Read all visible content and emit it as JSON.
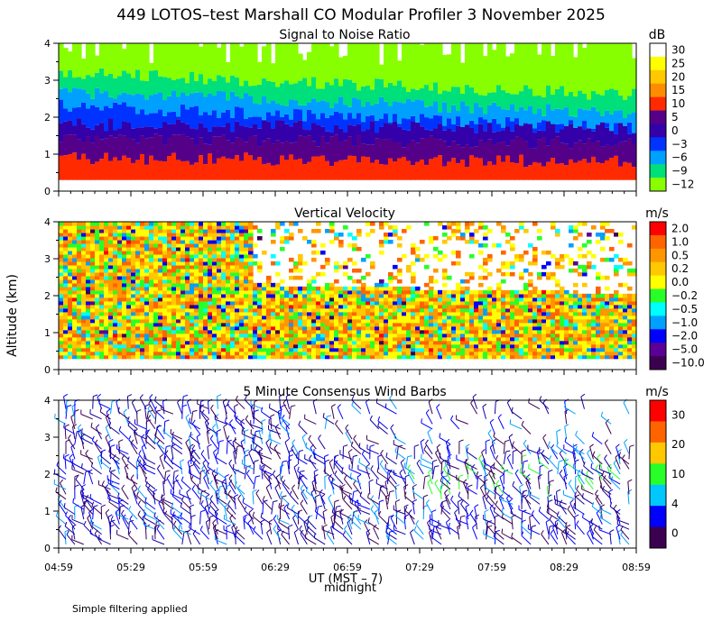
{
  "title": "449 LOTOS–test Marshall CO Modular Profiler  3 November 2025",
  "ylabel": "Altitude (km)",
  "xlabel_main": "UT  (MST – 7)",
  "xlabel_midnight": "midnight",
  "footer": "Simple filtering applied",
  "x_ticks": [
    "04:59",
    "05:29",
    "05:59",
    "06:29",
    "06:59",
    "07:29",
    "07:59",
    "08:29",
    "08:59"
  ],
  "chart_data": [
    {
      "type": "heatmap",
      "title": "Signal to Noise Ratio",
      "unit": "dB",
      "ylim": [
        0,
        4
      ],
      "y_ticks": [
        "0",
        "1",
        "2",
        "3",
        "4"
      ],
      "colorbar": {
        "labels": [
          "30",
          "25",
          "20",
          "15",
          "10",
          "5",
          "0",
          "−3",
          "−6",
          "−9",
          "−12"
        ],
        "colors": [
          "#ffffff",
          "#ffff00",
          "#ffc800",
          "#ff8c00",
          "#ff2a00",
          "#550088",
          "#3300aa",
          "#0033ff",
          "#00a0ff",
          "#00e07a",
          "#88ff00"
        ]
      },
      "profile_description": "High SNR near surface decreasing with altitude",
      "layers": [
        {
          "top": 0.9,
          "color": "#ff2a00"
        },
        {
          "top": 1.4,
          "color": "#550088"
        },
        {
          "top": 1.8,
          "color": "#3300aa"
        },
        {
          "top": 2.3,
          "color": "#0033ff"
        },
        {
          "top": 2.7,
          "color": "#00a0ff"
        },
        {
          "top": 3.2,
          "color": "#00e07a"
        },
        {
          "top": 4.0,
          "color": "#88ff00"
        }
      ]
    },
    {
      "type": "heatmap",
      "title": "Vertical Velocity",
      "unit": "m/s",
      "ylim": [
        0,
        4
      ],
      "y_ticks": [
        "0",
        "1",
        "2",
        "3",
        "4"
      ],
      "colorbar": {
        "labels": [
          "2.0",
          "1.0",
          "0.5",
          "0.2",
          "0.0",
          "−0.2",
          "−0.5",
          "−1.0",
          "−2.0",
          "−5.0",
          "−10.0"
        ],
        "colors": [
          "#ff0000",
          "#ff6400",
          "#ff9600",
          "#ffc800",
          "#ffff00",
          "#28ff28",
          "#00ffff",
          "#00a0ff",
          "#0000ff",
          "#5a0096",
          "#3c0050"
        ]
      }
    },
    {
      "type": "scatter",
      "title": "5 Minute Consensus Wind Barbs",
      "unit": "m/s",
      "ylim": [
        0,
        4
      ],
      "y_ticks": [
        "0",
        "1",
        "2",
        "3",
        "4"
      ],
      "colorbar": {
        "labels": [
          "30",
          "20",
          "10",
          "4",
          "0"
        ],
        "colors": [
          "#ff0000",
          "#ff6400",
          "#ffc800",
          "#28ff28",
          "#00c8ff",
          "#0000ff",
          "#3c0050"
        ]
      }
    }
  ]
}
